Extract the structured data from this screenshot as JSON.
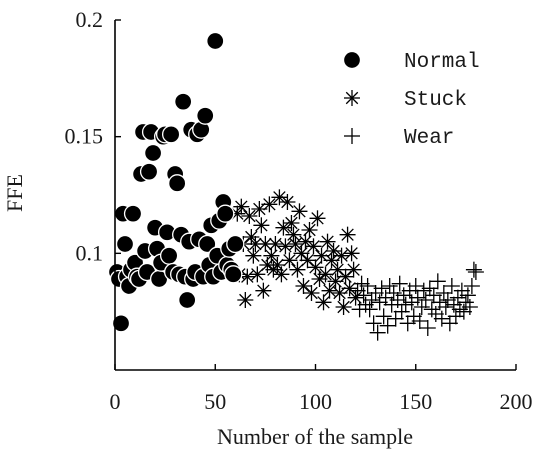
{
  "chart_data": {
    "type": "scatter",
    "xlabel": "Number of the sample",
    "ylabel": "FFE",
    "xlim": [
      0,
      200
    ],
    "ylim": [
      0.05,
      0.2
    ],
    "xticks": [
      "0",
      "50",
      "100",
      "150",
      "200"
    ],
    "yticks": [
      "0.1",
      "0.15",
      "0.2"
    ],
    "grid": false,
    "legend_position": "top-right",
    "series": [
      {
        "name": "Normal",
        "marker": "filled-circle",
        "color": "#000000",
        "points": [
          [
            1,
            0.092
          ],
          [
            2,
            0.089
          ],
          [
            3,
            0.07
          ],
          [
            4,
            0.117
          ],
          [
            5,
            0.104
          ],
          [
            6,
            0.09
          ],
          [
            7,
            0.086
          ],
          [
            8,
            0.093
          ],
          [
            9,
            0.117
          ],
          [
            10,
            0.096
          ],
          [
            11,
            0.09
          ],
          [
            12,
            0.089
          ],
          [
            13,
            0.134
          ],
          [
            14,
            0.152
          ],
          [
            15,
            0.101
          ],
          [
            16,
            0.092
          ],
          [
            17,
            0.135
          ],
          [
            18,
            0.152
          ],
          [
            19,
            0.143
          ],
          [
            20,
            0.111
          ],
          [
            21,
            0.102
          ],
          [
            22,
            0.089
          ],
          [
            23,
            0.096
          ],
          [
            24,
            0.15
          ],
          [
            25,
            0.151
          ],
          [
            26,
            0.109
          ],
          [
            27,
            0.099
          ],
          [
            28,
            0.151
          ],
          [
            29,
            0.092
          ],
          [
            30,
            0.134
          ],
          [
            31,
            0.13
          ],
          [
            32,
            0.091
          ],
          [
            33,
            0.108
          ],
          [
            34,
            0.165
          ],
          [
            35,
            0.09
          ],
          [
            36,
            0.08
          ],
          [
            37,
            0.105
          ],
          [
            38,
            0.153
          ],
          [
            39,
            0.089
          ],
          [
            40,
            0.092
          ],
          [
            41,
            0.151
          ],
          [
            42,
            0.106
          ],
          [
            43,
            0.153
          ],
          [
            44,
            0.09
          ],
          [
            45,
            0.159
          ],
          [
            46,
            0.104
          ],
          [
            47,
            0.095
          ],
          [
            48,
            0.112
          ],
          [
            49,
            0.09
          ],
          [
            50,
            0.191
          ],
          [
            51,
            0.099
          ],
          [
            52,
            0.114
          ],
          [
            53,
            0.092
          ],
          [
            54,
            0.122
          ],
          [
            55,
            0.117
          ],
          [
            56,
            0.095
          ],
          [
            57,
            0.102
          ],
          [
            58,
            0.093
          ],
          [
            59,
            0.091
          ],
          [
            60,
            0.104
          ]
        ]
      },
      {
        "name": "Stuck",
        "marker": "asterisk",
        "color": "#000000",
        "points": [
          [
            61,
            0.117
          ],
          [
            62,
            0.091
          ],
          [
            63,
            0.12
          ],
          [
            64,
            0.104
          ],
          [
            65,
            0.08
          ],
          [
            66,
            0.09
          ],
          [
            67,
            0.116
          ],
          [
            68,
            0.107
          ],
          [
            69,
            0.099
          ],
          [
            70,
            0.104
          ],
          [
            71,
            0.091
          ],
          [
            72,
            0.119
          ],
          [
            73,
            0.112
          ],
          [
            74,
            0.084
          ],
          [
            75,
            0.104
          ],
          [
            76,
            0.095
          ],
          [
            77,
            0.121
          ],
          [
            78,
            0.099
          ],
          [
            79,
            0.093
          ],
          [
            80,
            0.104
          ],
          [
            81,
            0.095
          ],
          [
            82,
            0.124
          ],
          [
            83,
            0.091
          ],
          [
            84,
            0.111
          ],
          [
            85,
            0.103
          ],
          [
            86,
            0.122
          ],
          [
            87,
            0.097
          ],
          [
            88,
            0.113
          ],
          [
            89,
            0.108
          ],
          [
            90,
            0.104
          ],
          [
            91,
            0.093
          ],
          [
            92,
            0.118
          ],
          [
            93,
            0.1
          ],
          [
            94,
            0.086
          ],
          [
            95,
            0.105
          ],
          [
            96,
            0.097
          ],
          [
            97,
            0.11
          ],
          [
            98,
            0.083
          ],
          [
            99,
            0.103
          ],
          [
            100,
            0.094
          ],
          [
            101,
            0.115
          ],
          [
            102,
            0.089
          ],
          [
            103,
            0.099
          ],
          [
            104,
            0.079
          ],
          [
            105,
            0.091
          ],
          [
            106,
            0.105
          ],
          [
            107,
            0.084
          ],
          [
            108,
            0.097
          ],
          [
            109,
            0.101
          ],
          [
            110,
            0.088
          ],
          [
            111,
            0.093
          ],
          [
            112,
            0.083
          ],
          [
            113,
            0.099
          ],
          [
            114,
            0.077
          ],
          [
            115,
            0.09
          ],
          [
            116,
            0.108
          ],
          [
            117,
            0.085
          ],
          [
            118,
            0.1
          ],
          [
            119,
            0.093
          ],
          [
            120,
            0.081
          ]
        ]
      },
      {
        "name": "Wear",
        "marker": "plus",
        "color": "#000000",
        "points": [
          [
            121,
            0.084
          ],
          [
            122,
            0.076
          ],
          [
            123,
            0.087
          ],
          [
            124,
            0.082
          ],
          [
            125,
            0.078
          ],
          [
            126,
            0.086
          ],
          [
            127,
            0.076
          ],
          [
            128,
            0.08
          ],
          [
            129,
            0.07
          ],
          [
            130,
            0.083
          ],
          [
            131,
            0.066
          ],
          [
            132,
            0.079
          ],
          [
            133,
            0.085
          ],
          [
            134,
            0.073
          ],
          [
            135,
            0.081
          ],
          [
            136,
            0.069
          ],
          [
            137,
            0.086
          ],
          [
            138,
            0.078
          ],
          [
            139,
            0.083
          ],
          [
            140,
            0.072
          ],
          [
            141,
            0.08
          ],
          [
            142,
            0.087
          ],
          [
            143,
            0.075
          ],
          [
            144,
            0.082
          ],
          [
            145,
            0.078
          ],
          [
            146,
            0.07
          ],
          [
            147,
            0.084
          ],
          [
            148,
            0.079
          ],
          [
            149,
            0.073
          ],
          [
            150,
            0.086
          ],
          [
            151,
            0.081
          ],
          [
            152,
            0.071
          ],
          [
            153,
            0.077
          ],
          [
            154,
            0.084
          ],
          [
            155,
            0.08
          ],
          [
            156,
            0.068
          ],
          [
            157,
            0.085
          ],
          [
            158,
            0.076
          ],
          [
            159,
            0.082
          ],
          [
            160,
            0.074
          ],
          [
            161,
            0.088
          ],
          [
            162,
            0.079
          ],
          [
            163,
            0.072
          ],
          [
            164,
            0.083
          ],
          [
            165,
            0.077
          ],
          [
            166,
            0.08
          ],
          [
            167,
            0.07
          ],
          [
            168,
            0.086
          ],
          [
            169,
            0.078
          ],
          [
            170,
            0.073
          ],
          [
            171,
            0.081
          ],
          [
            172,
            0.076
          ],
          [
            173,
            0.084
          ],
          [
            174,
            0.075
          ],
          [
            175,
            0.079
          ],
          [
            176,
            0.082
          ],
          [
            177,
            0.077
          ],
          [
            178,
            0.086
          ],
          [
            179,
            0.093
          ],
          [
            180,
            0.092
          ]
        ]
      }
    ]
  }
}
